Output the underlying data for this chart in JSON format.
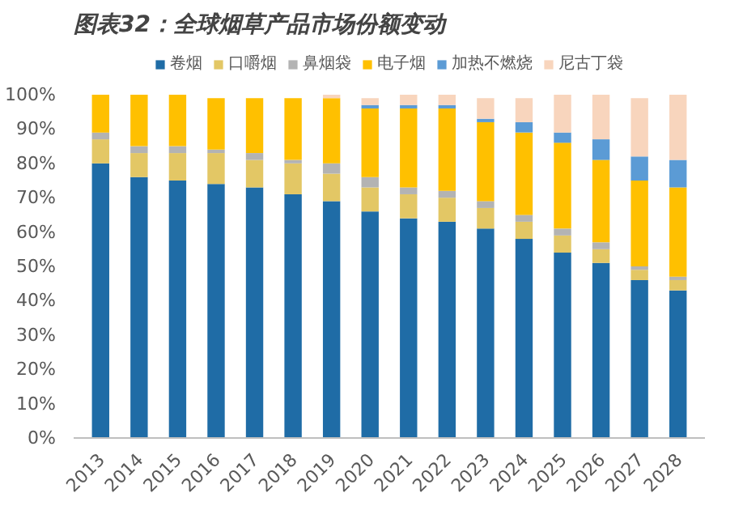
{
  "chart_data": {
    "type": "bar",
    "stacked": true,
    "title": "图表32：全球烟草产品市场份额变动",
    "categories": [
      "2013",
      "2014",
      "2015",
      "2016",
      "2017",
      "2018",
      "2019",
      "2020",
      "2021",
      "2022",
      "2023",
      "2024",
      "2025",
      "2026",
      "2027",
      "2028"
    ],
    "series": [
      {
        "name": "卷烟",
        "color": "#1f6ca6",
        "values": [
          80,
          76,
          75,
          74,
          73,
          71,
          69,
          66,
          64,
          63,
          61,
          58,
          54,
          51,
          46,
          43
        ]
      },
      {
        "name": "口嚼烟",
        "color": "#e3c765",
        "values": [
          7,
          7,
          8,
          9,
          8,
          9,
          8,
          7,
          7,
          7,
          6,
          5,
          5,
          4,
          3,
          3
        ]
      },
      {
        "name": "鼻烟袋",
        "color": "#b3b3b3",
        "values": [
          2,
          2,
          2,
          1,
          2,
          1,
          3,
          3,
          2,
          2,
          2,
          2,
          2,
          2,
          1,
          1
        ]
      },
      {
        "name": "电子烟",
        "color": "#ffc000",
        "values": [
          11,
          15,
          15,
          15,
          16,
          18,
          19,
          20,
          23,
          24,
          23,
          24,
          25,
          24,
          25,
          26
        ]
      },
      {
        "name": "加热不燃烧",
        "color": "#5b9bd5",
        "values": [
          0,
          0,
          0,
          0,
          0,
          0,
          0,
          1,
          1,
          1,
          1,
          3,
          3,
          6,
          7,
          8
        ]
      },
      {
        "name": "尼古丁袋",
        "color": "#f8d5bd",
        "values": [
          0,
          0,
          0,
          0,
          0,
          0,
          1,
          2,
          3,
          3,
          6,
          7,
          11,
          13,
          17,
          19
        ]
      }
    ],
    "ylim": [
      0,
      100
    ],
    "yticks": [
      {
        "value": 0,
        "label": "0%"
      },
      {
        "value": 10,
        "label": "10%"
      },
      {
        "value": 20,
        "label": "20%"
      },
      {
        "value": 30,
        "label": "30%"
      },
      {
        "value": 40,
        "label": "40%"
      },
      {
        "value": 50,
        "label": "50%"
      },
      {
        "value": 60,
        "label": "60%"
      },
      {
        "value": 70,
        "label": "70%"
      },
      {
        "value": 80,
        "label": "80%"
      },
      {
        "value": 90,
        "label": "90%"
      },
      {
        "value": 100,
        "label": "100%"
      }
    ],
    "grid": false,
    "legend": "top"
  }
}
